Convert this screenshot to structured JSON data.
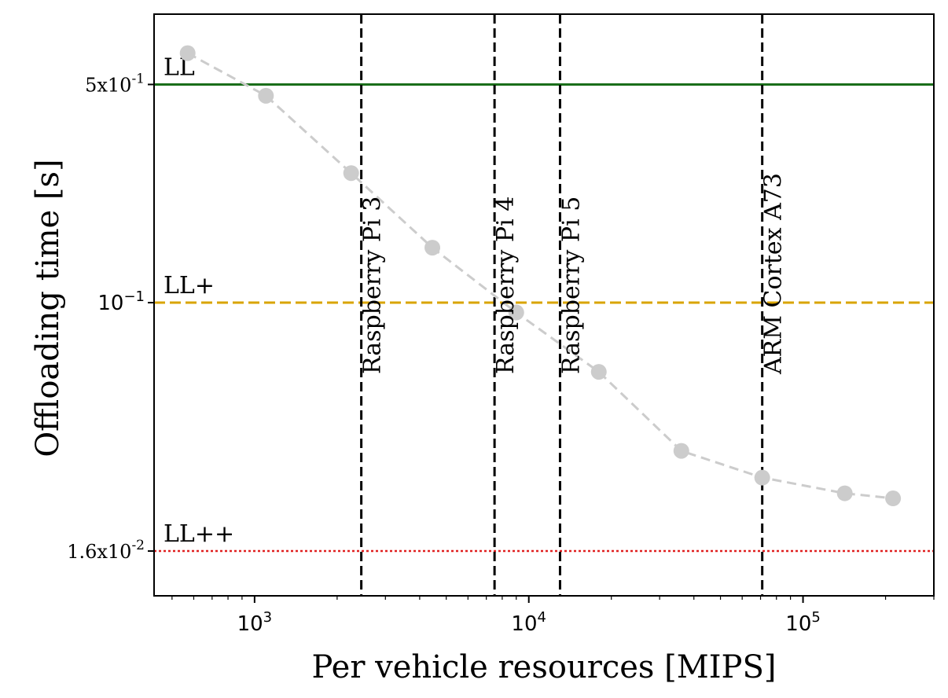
{
  "chart_data": {
    "type": "line",
    "xlabel": "Per vehicle resources [MIPS]",
    "ylabel": "Offloading time [s]",
    "xscale": "log",
    "yscale": "log",
    "xlim": [
      430,
      300000
    ],
    "ylim": [
      0.0115,
      0.84
    ],
    "grid": false,
    "x_ticks": [
      {
        "value": 1000,
        "base": "10",
        "exp": "3"
      },
      {
        "value": 10000,
        "base": "10",
        "exp": "4"
      },
      {
        "value": 100000,
        "base": "10",
        "exp": "5"
      }
    ],
    "y_ticks": [
      {
        "value": 0.5,
        "mantissa": "5x10",
        "exp": "-1",
        "style": "serif"
      },
      {
        "value": 0.1,
        "mantissa": "10",
        "exp": "−1",
        "style": "math"
      },
      {
        "value": 0.016,
        "mantissa": "1.6x10",
        "exp": "-2",
        "style": "serif"
      }
    ],
    "series": [
      {
        "color": "#cccccc",
        "x": [
          570,
          1100,
          2250,
          4450,
          9000,
          18000,
          36000,
          71000,
          142000,
          213000
        ],
        "y": [
          0.63,
          0.46,
          0.26,
          0.15,
          0.093,
          0.06,
          0.0335,
          0.0275,
          0.0245,
          0.0236
        ]
      }
    ],
    "reference_lines": [
      {
        "label": "LL",
        "y": 0.5,
        "color": "#1a6e1a",
        "style": "solid"
      },
      {
        "label": "LL+",
        "y": 0.1,
        "color": "#d9a400",
        "style": "dashed"
      },
      {
        "label": "LL++",
        "y": 0.016,
        "color": "#e02020",
        "style": "dotted"
      }
    ],
    "device_lines": [
      {
        "label": "Raspberry Pi 3",
        "x": 2450
      },
      {
        "label": "Raspberry Pi 4",
        "x": 7500
      },
      {
        "label": "Raspberry Pi 5",
        "x": 13000
      },
      {
        "label": "ARM Cortex A73",
        "x": 71000
      }
    ]
  }
}
